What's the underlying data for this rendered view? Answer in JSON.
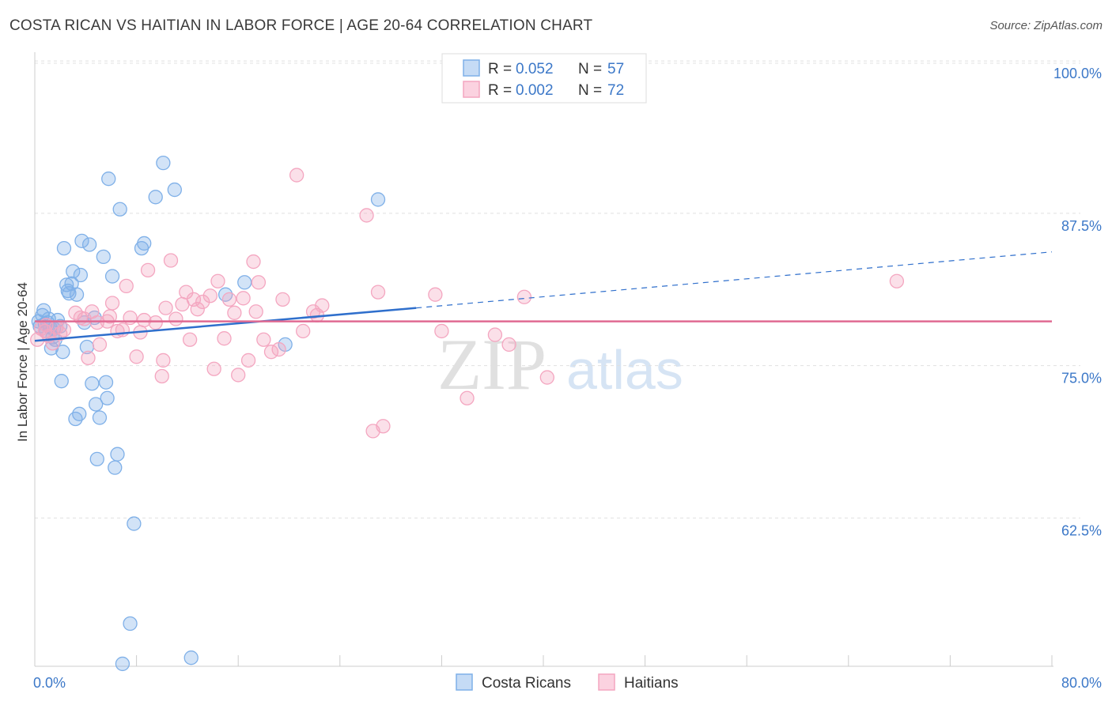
{
  "header": {
    "title": "COSTA RICAN VS HAITIAN IN LABOR FORCE | AGE 20-64 CORRELATION CHART",
    "source": "Source: ZipAtlas.com"
  },
  "watermark": {
    "zip": "ZIP",
    "atlas": "atlas"
  },
  "legend": {
    "r_label": "R =",
    "n_label": "N =",
    "entries": [
      {
        "r": "0.052",
        "n": "57",
        "color": "#7fb0e8"
      },
      {
        "r": "0.002",
        "n": "72",
        "color": "#f4a6c0"
      }
    ]
  },
  "bottom_legend": [
    "Costa Ricans",
    "Haitians"
  ],
  "chart_data": {
    "type": "scatter",
    "title": "COSTA RICAN VS HAITIAN IN LABOR FORCE | AGE 20-64 CORRELATION CHART",
    "xlabel": "",
    "ylabel": "In Labor Force | Age 20-64",
    "xlim": [
      0,
      80
    ],
    "ylim": [
      51.5,
      101.5
    ],
    "y_ticks": [
      62.5,
      75.0,
      87.5,
      100.0
    ],
    "y_tick_labels": [
      "62.5%",
      "75.0%",
      "87.5%",
      "100.0%"
    ],
    "x_tick_labels": [
      "0.0%",
      "80.0%"
    ],
    "grid": true,
    "legend_position": "top-center",
    "series": [
      {
        "name": "Costa Ricans",
        "color": "#7fb0e8",
        "line_color": "#2f6fcc",
        "trend": {
          "x0": 0.0,
          "y0": 78.2,
          "x1": 30.0,
          "y1": 80.9,
          "dash_to_x": 80.0,
          "dash_to_y": 85.5
        },
        "points": [
          [
            0.3,
            79.8
          ],
          [
            0.4,
            79.4
          ],
          [
            0.6,
            80.3
          ],
          [
            0.7,
            80.7
          ],
          [
            0.8,
            79.6
          ],
          [
            0.9,
            79.0
          ],
          [
            1.0,
            79.7
          ],
          [
            1.1,
            80.0
          ],
          [
            1.2,
            79.3
          ],
          [
            1.3,
            77.6
          ],
          [
            1.4,
            78.5
          ],
          [
            1.5,
            79.2
          ],
          [
            1.6,
            78.3
          ],
          [
            1.8,
            79.9
          ],
          [
            2.0,
            79.4
          ],
          [
            2.1,
            74.9
          ],
          [
            2.2,
            77.3
          ],
          [
            2.3,
            85.8
          ],
          [
            2.5,
            82.8
          ],
          [
            2.6,
            82.3
          ],
          [
            2.7,
            82.1
          ],
          [
            2.9,
            82.9
          ],
          [
            3.0,
            83.9
          ],
          [
            3.2,
            71.8
          ],
          [
            3.3,
            82.0
          ],
          [
            3.5,
            72.2
          ],
          [
            3.6,
            83.6
          ],
          [
            3.7,
            86.4
          ],
          [
            3.9,
            79.7
          ],
          [
            4.1,
            77.7
          ],
          [
            4.3,
            86.1
          ],
          [
            4.5,
            74.7
          ],
          [
            4.7,
            80.1
          ],
          [
            4.8,
            73.0
          ],
          [
            4.9,
            68.5
          ],
          [
            5.1,
            71.9
          ],
          [
            5.4,
            85.1
          ],
          [
            5.6,
            74.8
          ],
          [
            5.7,
            73.5
          ],
          [
            5.8,
            91.5
          ],
          [
            6.1,
            83.5
          ],
          [
            6.3,
            67.8
          ],
          [
            6.5,
            68.9
          ],
          [
            6.7,
            89.0
          ],
          [
            6.9,
            51.7
          ],
          [
            7.5,
            55.0
          ],
          [
            7.8,
            63.2
          ],
          [
            8.4,
            85.8
          ],
          [
            8.6,
            86.2
          ],
          [
            9.5,
            90.0
          ],
          [
            10.1,
            92.8
          ],
          [
            11.0,
            90.6
          ],
          [
            12.3,
            52.2
          ],
          [
            15.0,
            82.0
          ],
          [
            16.5,
            83.0
          ],
          [
            19.7,
            77.9
          ],
          [
            27.0,
            89.8
          ]
        ]
      },
      {
        "name": "Haitians",
        "color": "#f4a6c0",
        "line_color": "#e06a92",
        "trend": {
          "x0": 0.0,
          "y0": 79.8,
          "x1": 80.0,
          "y1": 79.8,
          "dash_to_x": 80.0,
          "dash_to_y": 79.8
        },
        "points": [
          [
            0.2,
            78.3
          ],
          [
            0.5,
            79.2
          ],
          [
            0.8,
            79.0
          ],
          [
            1.1,
            78.6
          ],
          [
            1.4,
            78.0
          ],
          [
            1.7,
            79.3
          ],
          [
            2.3,
            79.1
          ],
          [
            3.2,
            80.5
          ],
          [
            3.6,
            80.1
          ],
          [
            4.2,
            76.8
          ],
          [
            4.5,
            80.6
          ],
          [
            4.9,
            79.7
          ],
          [
            5.1,
            77.9
          ],
          [
            5.7,
            79.8
          ],
          [
            5.9,
            80.2
          ],
          [
            6.1,
            81.3
          ],
          [
            6.5,
            79.0
          ],
          [
            6.9,
            79.1
          ],
          [
            7.2,
            82.7
          ],
          [
            7.5,
            80.1
          ],
          [
            8.0,
            76.9
          ],
          [
            8.3,
            78.9
          ],
          [
            8.6,
            79.9
          ],
          [
            8.9,
            84.0
          ],
          [
            9.5,
            79.7
          ],
          [
            10.0,
            75.3
          ],
          [
            10.1,
            76.6
          ],
          [
            10.3,
            80.9
          ],
          [
            10.7,
            84.8
          ],
          [
            11.1,
            80.0
          ],
          [
            11.6,
            81.2
          ],
          [
            11.9,
            82.2
          ],
          [
            12.2,
            78.3
          ],
          [
            12.5,
            81.6
          ],
          [
            12.8,
            80.8
          ],
          [
            13.2,
            81.4
          ],
          [
            13.8,
            81.9
          ],
          [
            14.1,
            75.9
          ],
          [
            14.4,
            83.1
          ],
          [
            14.9,
            78.4
          ],
          [
            15.3,
            81.6
          ],
          [
            15.7,
            80.5
          ],
          [
            16.0,
            75.4
          ],
          [
            16.4,
            81.7
          ],
          [
            16.8,
            76.6
          ],
          [
            17.2,
            84.7
          ],
          [
            17.4,
            80.6
          ],
          [
            17.6,
            83.0
          ],
          [
            18.0,
            78.3
          ],
          [
            18.6,
            77.3
          ],
          [
            19.2,
            77.5
          ],
          [
            19.5,
            81.6
          ],
          [
            20.6,
            91.8
          ],
          [
            21.1,
            79.0
          ],
          [
            21.9,
            80.6
          ],
          [
            22.2,
            80.3
          ],
          [
            22.6,
            81.1
          ],
          [
            26.1,
            88.5
          ],
          [
            26.6,
            70.8
          ],
          [
            27.0,
            82.2
          ],
          [
            27.4,
            71.2
          ],
          [
            31.5,
            82.0
          ],
          [
            32.0,
            79.0
          ],
          [
            34.0,
            73.5
          ],
          [
            36.2,
            78.7
          ],
          [
            37.3,
            77.9
          ],
          [
            38.5,
            81.8
          ],
          [
            40.3,
            75.2
          ],
          [
            67.8,
            83.1
          ],
          [
            0.9,
            79.5
          ],
          [
            2.0,
            78.8
          ],
          [
            3.9,
            80.0
          ]
        ]
      }
    ]
  }
}
